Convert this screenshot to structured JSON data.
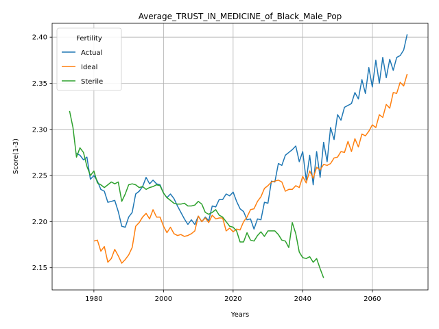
{
  "chart_data": {
    "type": "line",
    "title": "Average_TRUST_IN_MEDICINE_of_Black_Male_Pop",
    "xlabel": "Years",
    "ylabel": "Score(1-3)",
    "xlim": [
      1968,
      2076
    ],
    "ylim": [
      2.126,
      2.415
    ],
    "x_ticks": [
      1980,
      2000,
      2020,
      2040,
      2060
    ],
    "x_tick_labels": [
      "1980",
      "2000",
      "2020",
      "2040",
      "2060"
    ],
    "y_ticks": [
      2.15,
      2.2,
      2.25,
      2.3,
      2.35,
      2.4
    ],
    "y_tick_labels": [
      "2.15",
      "2.20",
      "2.25",
      "2.30",
      "2.35",
      "2.40"
    ],
    "grid": true,
    "legend": {
      "title": "Fertility",
      "position": "top-left"
    },
    "series": [
      {
        "name": "Actual",
        "color": "#1f77b4",
        "x": [
          1975,
          1976,
          1977,
          1978,
          1979,
          1980,
          1981,
          1982,
          1983,
          1984,
          1985,
          1986,
          1987,
          1988,
          1989,
          1990,
          1991,
          1992,
          1993,
          1994,
          1995,
          1996,
          1997,
          1998,
          1999,
          2000,
          2001,
          2002,
          2003,
          2004,
          2005,
          2006,
          2007,
          2008,
          2009,
          2010,
          2011,
          2012,
          2013,
          2014,
          2015,
          2016,
          2017,
          2018,
          2019,
          2020,
          2021,
          2022,
          2023,
          2024,
          2025,
          2026,
          2027,
          2028,
          2029,
          2030,
          2031,
          2032,
          2033,
          2034,
          2035,
          2036,
          2037,
          2038,
          2039,
          2040,
          2041,
          2042,
          2043,
          2044,
          2045,
          2046,
          2047,
          2048,
          2049,
          2050,
          2051,
          2052,
          2053,
          2054,
          2055,
          2056,
          2057,
          2058,
          2059,
          2060,
          2061,
          2062,
          2063,
          2064,
          2065,
          2066,
          2067,
          2068,
          2069,
          2070
        ],
        "values": [
          2.274,
          2.272,
          2.267,
          2.27,
          2.246,
          2.25,
          2.244,
          2.235,
          2.233,
          2.221,
          2.222,
          2.223,
          2.211,
          2.195,
          2.194,
          2.205,
          2.21,
          2.23,
          2.233,
          2.238,
          2.248,
          2.241,
          2.245,
          2.241,
          2.24,
          2.231,
          2.226,
          2.23,
          2.225,
          2.217,
          2.21,
          2.203,
          2.197,
          2.202,
          2.197,
          2.206,
          2.2,
          2.205,
          2.201,
          2.217,
          2.216,
          2.224,
          2.224,
          2.23,
          2.228,
          2.232,
          2.222,
          2.214,
          2.211,
          2.202,
          2.203,
          2.192,
          2.203,
          2.202,
          2.221,
          2.22,
          2.244,
          2.243,
          2.263,
          2.261,
          2.272,
          2.275,
          2.278,
          2.282,
          2.265,
          2.276,
          2.245,
          2.272,
          2.24,
          2.276,
          2.248,
          2.286,
          2.265,
          2.302,
          2.289,
          2.316,
          2.31,
          2.324,
          2.326,
          2.328,
          2.34,
          2.333,
          2.354,
          2.339,
          2.367,
          2.346,
          2.375,
          2.35,
          2.378,
          2.356,
          2.376,
          2.364,
          2.378,
          2.38,
          2.386,
          2.403
        ]
      },
      {
        "name": "Ideal",
        "color": "#ff7f0e",
        "x": [
          1980,
          1981,
          1982,
          1983,
          1984,
          1985,
          1986,
          1987,
          1988,
          1989,
          1990,
          1991,
          1992,
          1993,
          1994,
          1995,
          1996,
          1997,
          1998,
          1999,
          2000,
          2001,
          2002,
          2003,
          2004,
          2005,
          2006,
          2007,
          2008,
          2009,
          2010,
          2011,
          2012,
          2013,
          2014,
          2015,
          2016,
          2017,
          2018,
          2019,
          2020,
          2021,
          2022,
          2023,
          2024,
          2025,
          2026,
          2027,
          2028,
          2029,
          2030,
          2031,
          2032,
          2033,
          2034,
          2035,
          2036,
          2037,
          2038,
          2039,
          2040,
          2041,
          2042,
          2043,
          2044,
          2045,
          2046,
          2047,
          2048,
          2049,
          2050,
          2051,
          2052,
          2053,
          2054,
          2055,
          2056,
          2057,
          2058,
          2059,
          2060,
          2061,
          2062,
          2063,
          2064,
          2065,
          2066,
          2067,
          2068,
          2069,
          2070
        ],
        "values": [
          2.179,
          2.18,
          2.168,
          2.173,
          2.156,
          2.16,
          2.17,
          2.163,
          2.155,
          2.159,
          2.164,
          2.172,
          2.195,
          2.199,
          2.205,
          2.209,
          2.203,
          2.213,
          2.205,
          2.205,
          2.195,
          2.188,
          2.194,
          2.187,
          2.185,
          2.186,
          2.184,
          2.185,
          2.187,
          2.19,
          2.206,
          2.2,
          2.204,
          2.199,
          2.207,
          2.203,
          2.204,
          2.204,
          2.19,
          2.193,
          2.189,
          2.192,
          2.191,
          2.2,
          2.205,
          2.213,
          2.214,
          2.222,
          2.227,
          2.236,
          2.239,
          2.243,
          2.244,
          2.245,
          2.243,
          2.233,
          2.235,
          2.235,
          2.239,
          2.237,
          2.249,
          2.242,
          2.255,
          2.247,
          2.259,
          2.256,
          2.262,
          2.261,
          2.263,
          2.269,
          2.27,
          2.276,
          2.275,
          2.287,
          2.276,
          2.29,
          2.281,
          2.295,
          2.293,
          2.298,
          2.305,
          2.302,
          2.316,
          2.313,
          2.327,
          2.323,
          2.34,
          2.339,
          2.351,
          2.347,
          2.36
        ]
      },
      {
        "name": "Sterile",
        "color": "#2ca02c",
        "x": [
          1973,
          1974,
          1975,
          1976,
          1977,
          1978,
          1979,
          1980,
          1981,
          1982,
          1983,
          1984,
          1985,
          1986,
          1987,
          1988,
          1989,
          1990,
          1991,
          1992,
          1993,
          1994,
          1995,
          1996,
          1997,
          1998,
          1999,
          2000,
          2001,
          2002,
          2003,
          2004,
          2005,
          2006,
          2007,
          2008,
          2009,
          2010,
          2011,
          2012,
          2013,
          2014,
          2015,
          2016,
          2017,
          2018,
          2019,
          2020,
          2021,
          2022,
          2023,
          2024,
          2025,
          2026,
          2027,
          2028,
          2029,
          2030,
          2031,
          2032,
          2033,
          2034,
          2035,
          2036,
          2037,
          2038,
          2039,
          2040,
          2041,
          2042,
          2043,
          2044,
          2045,
          2046
        ],
        "values": [
          2.32,
          2.302,
          2.27,
          2.28,
          2.275,
          2.26,
          2.25,
          2.255,
          2.242,
          2.24,
          2.237,
          2.24,
          2.243,
          2.241,
          2.243,
          2.222,
          2.23,
          2.24,
          2.241,
          2.24,
          2.237,
          2.238,
          2.235,
          2.237,
          2.238,
          2.24,
          2.239,
          2.231,
          2.226,
          2.223,
          2.22,
          2.219,
          2.219,
          2.22,
          2.217,
          2.217,
          2.218,
          2.222,
          2.219,
          2.21,
          2.208,
          2.21,
          2.213,
          2.207,
          2.205,
          2.2,
          2.195,
          2.194,
          2.19,
          2.178,
          2.178,
          2.188,
          2.18,
          2.179,
          2.185,
          2.189,
          2.184,
          2.19,
          2.19,
          2.19,
          2.186,
          2.18,
          2.179,
          2.172,
          2.199,
          2.187,
          2.167,
          2.161,
          2.16,
          2.162,
          2.156,
          2.16,
          2.149,
          2.139
        ]
      }
    ]
  }
}
